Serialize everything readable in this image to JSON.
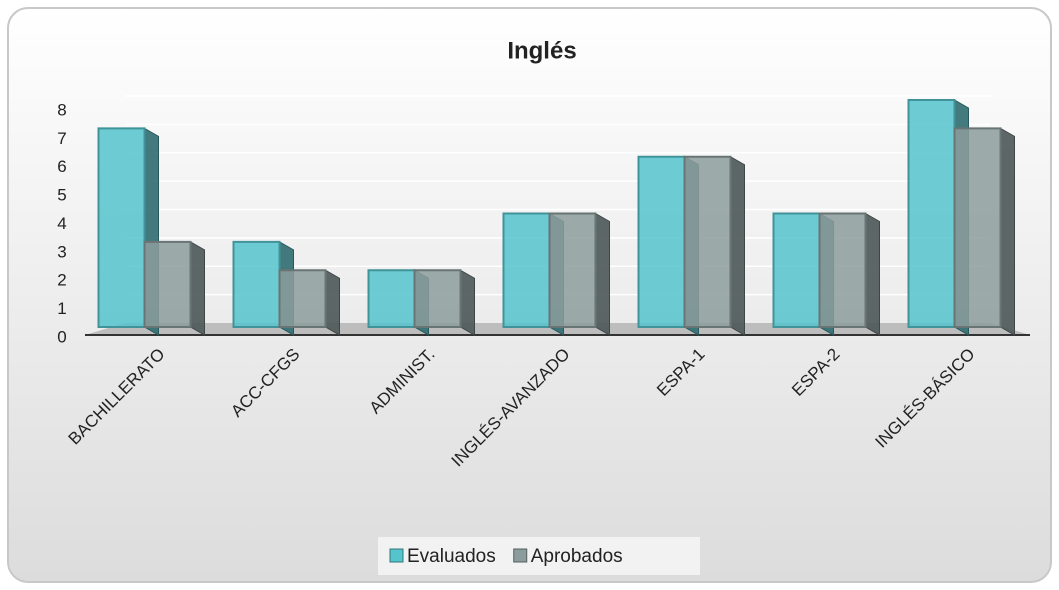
{
  "chart_data": {
    "type": "bar",
    "title": "Inglés",
    "categories": [
      "BACHILLERATO",
      "ACC-CFGS",
      "ADMINIST.",
      "INGLÉS-AVANZADO",
      "ESPA-1",
      "ESPA-2",
      "INGLÉS-BÁSICO"
    ],
    "series": [
      {
        "name": "Evaluados",
        "color": "#55c4cc",
        "values": [
          7,
          3,
          2,
          4,
          6,
          4,
          8
        ]
      },
      {
        "name": "Aprobados",
        "color": "#8c9c9c",
        "values": [
          3,
          2,
          2,
          4,
          6,
          4,
          7
        ]
      }
    ],
    "ylim": [
      0,
      8
    ],
    "yticks": [
      0,
      1,
      2,
      3,
      4,
      5,
      6,
      7,
      8
    ],
    "grid": true,
    "legend": "bottom"
  }
}
